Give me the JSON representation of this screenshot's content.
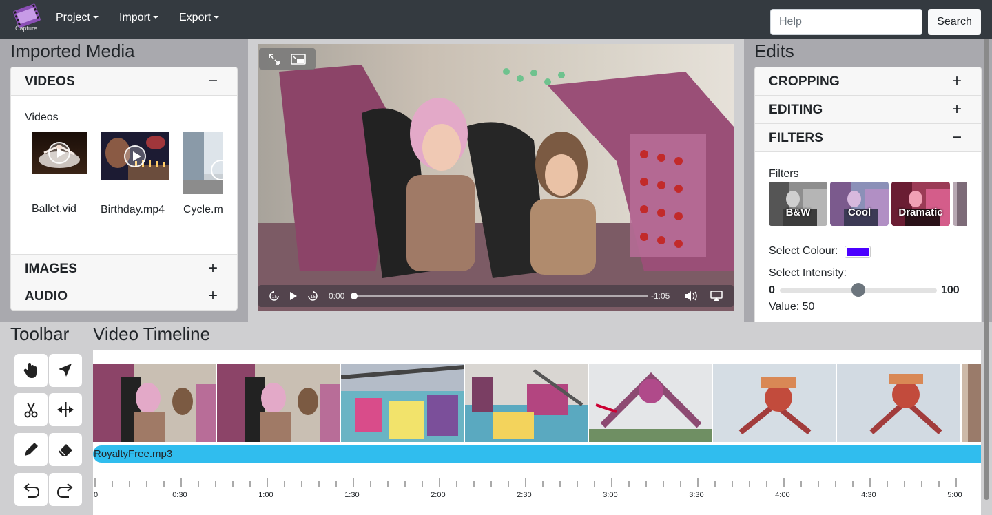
{
  "app": {
    "logo_text": "Capture"
  },
  "navbar": {
    "menus": [
      "Project",
      "Import",
      "Export"
    ],
    "help_placeholder": "Help",
    "search_label": "Search"
  },
  "imported_media": {
    "title": "Imported Media",
    "videos_section": {
      "label": "VIDEOS",
      "sign": "−",
      "subheading": "Videos",
      "items": [
        {
          "name": "Ballet.vid"
        },
        {
          "name": "Birthday.mp4"
        },
        {
          "name": "Cycle.m"
        }
      ]
    },
    "images_section": {
      "label": "IMAGES",
      "sign": "+"
    },
    "audio_section": {
      "label": "AUDIO",
      "sign": "+"
    }
  },
  "player": {
    "current_time": "0:00",
    "remaining_time": "-1:05",
    "progress_fraction": 0.0
  },
  "edits": {
    "title": "Edits",
    "cropping": {
      "label": "CROPPING",
      "sign": "+"
    },
    "editing": {
      "label": "EDITING",
      "sign": "+"
    },
    "filters": {
      "label": "FILTERS",
      "sign": "−",
      "subheading": "Filters",
      "options": [
        "B&W",
        "Cool",
        "Dramatic"
      ],
      "select_colour_label": "Select Colour:",
      "selected_colour": "#4b00ff",
      "select_intensity_label": "Select Intensity:",
      "intensity_min": "0",
      "intensity_max": "100",
      "value_text": "Value: 50",
      "intensity_value": 50
    }
  },
  "toolbar": {
    "title": "Toolbar",
    "tools": [
      "hand-icon",
      "pointer-icon",
      "scissors-icon",
      "split-icon",
      "pencil-icon",
      "eraser-icon",
      "undo-icon",
      "redo-icon"
    ]
  },
  "timeline": {
    "title": "Video Timeline",
    "audio_track": "RoyaltyFree.mp3",
    "time_labels": [
      "0",
      "0:30",
      "1:00",
      "1:30",
      "2:00",
      "2:30",
      "3:00",
      "3:30",
      "4:00",
      "4:30",
      "5:00"
    ]
  },
  "colors": {
    "navbar": "#343a40",
    "audio_track": "#30bdee",
    "panel_bg": "#a9a9ae"
  }
}
